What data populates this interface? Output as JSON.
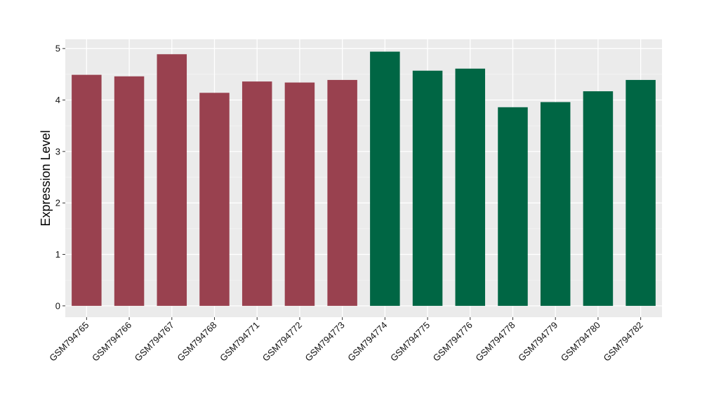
{
  "chart_data": {
    "type": "bar",
    "title": "",
    "xlabel": "",
    "ylabel": "Expression Level",
    "ylim": [
      -0.22,
      5.18
    ],
    "yticks": [
      0,
      1,
      2,
      3,
      4,
      5
    ],
    "grid": true,
    "background": "#ebebeb",
    "categories": [
      "GSM794765",
      "GSM794766",
      "GSM794767",
      "GSM794768",
      "GSM794771",
      "GSM794772",
      "GSM794773",
      "GSM794774",
      "GSM794775",
      "GSM794776",
      "GSM794778",
      "GSM794779",
      "GSM794780",
      "GSM794782"
    ],
    "values": [
      4.49,
      4.46,
      4.89,
      4.14,
      4.36,
      4.34,
      4.39,
      4.94,
      4.57,
      4.61,
      3.86,
      3.96,
      4.17,
      4.39
    ],
    "bar_colors": [
      "#99414f",
      "#99414f",
      "#99414f",
      "#99414f",
      "#99414f",
      "#99414f",
      "#99414f",
      "#006644",
      "#006644",
      "#006644",
      "#006644",
      "#006644",
      "#006644",
      "#006644"
    ]
  }
}
